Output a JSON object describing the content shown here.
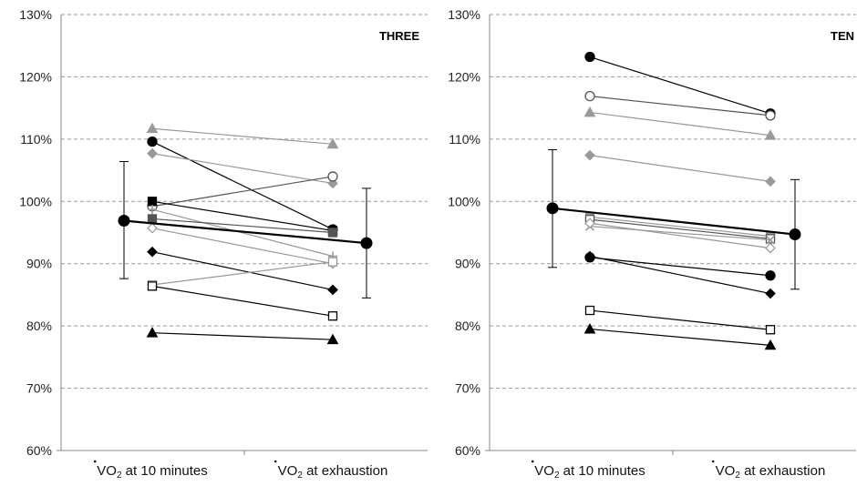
{
  "chart_data": [
    {
      "type": "line",
      "panel_label": "THREE",
      "categories": [
        "VO2 at 10 minutes",
        "VO2 at exhaustion"
      ],
      "category_labels": [
        {
          "main": "VO",
          "sub": "2",
          "rest": " at 10 minutes"
        },
        {
          "main": "VO",
          "sub": "2",
          "rest": " at exhaustion"
        }
      ],
      "y_ticks": [
        "60%",
        "70%",
        "80%",
        "90%",
        "100%",
        "110%",
        "120%",
        "130%"
      ],
      "ylim": [
        60,
        130
      ],
      "grid": "horizontal dashed",
      "series": [
        {
          "marker": "triangle",
          "color": "#999999",
          "values": [
            111.7,
            109.2
          ]
        },
        {
          "marker": "circle",
          "color": "#000000",
          "values": [
            109.6,
            95.5
          ]
        },
        {
          "marker": "diamond",
          "color": "#999999",
          "values": [
            107.7,
            102.9
          ]
        },
        {
          "marker": "circle-open",
          "color": "#555555",
          "values": [
            99.2,
            104.0
          ]
        },
        {
          "marker": "square",
          "color": "#000000",
          "values": [
            100.0,
            95.3
          ]
        },
        {
          "marker": "plus",
          "color": "#999999",
          "values": [
            98.7,
            91.2
          ]
        },
        {
          "marker": "square",
          "color": "#555555",
          "values": [
            97.2,
            95.0
          ]
        },
        {
          "marker": "diamond-open",
          "color": "#999999",
          "values": [
            95.7,
            90.0
          ]
        },
        {
          "marker": "diamond",
          "color": "#000000",
          "values": [
            91.9,
            85.8
          ]
        },
        {
          "marker": "square-open",
          "color": "#999999",
          "values": [
            86.6,
            90.3
          ]
        },
        {
          "marker": "square-open",
          "color": "#000000",
          "values": [
            86.4,
            81.6
          ]
        },
        {
          "marker": "triangle",
          "color": "#000000",
          "values": [
            78.9,
            77.8
          ]
        }
      ],
      "mean": {
        "values": [
          96.9,
          93.3
        ],
        "error_low": [
          87.6,
          84.5
        ],
        "error_high": [
          106.4,
          102.1
        ]
      }
    },
    {
      "type": "line",
      "panel_label": "TEN",
      "categories": [
        "VO2 at 10 minutes",
        "VO2 at exhaustion"
      ],
      "category_labels": [
        {
          "main": "VO",
          "sub": "2",
          "rest": " at 10 minutes"
        },
        {
          "main": "VO",
          "sub": "2",
          "rest": " at exhaustion"
        }
      ],
      "y_ticks": [
        "60%",
        "70%",
        "80%",
        "90%",
        "100%",
        "110%",
        "120%",
        "130%"
      ],
      "ylim": [
        60,
        130
      ],
      "grid": "horizontal dashed",
      "series": [
        {
          "marker": "circle",
          "color": "#000000",
          "values": [
            123.2,
            114.1
          ]
        },
        {
          "marker": "circle-open",
          "color": "#555555",
          "values": [
            116.9,
            113.8
          ]
        },
        {
          "marker": "triangle",
          "color": "#999999",
          "values": [
            114.3,
            110.6
          ]
        },
        {
          "marker": "diamond",
          "color": "#999999",
          "values": [
            107.4,
            103.2
          ]
        },
        {
          "marker": "square",
          "color": "#999999",
          "values": [
            97.5,
            94.4
          ]
        },
        {
          "marker": "square-open",
          "color": "#555555",
          "values": [
            97.1,
            94.0
          ]
        },
        {
          "marker": "cross",
          "color": "#999999",
          "values": [
            96.0,
            93.8
          ]
        },
        {
          "marker": "diamond-open",
          "color": "#999999",
          "values": [
            96.5,
            92.5
          ]
        },
        {
          "marker": "circle",
          "color": "#000000",
          "values": [
            91.0,
            88.1
          ]
        },
        {
          "marker": "diamond",
          "color": "#000000",
          "values": [
            91.2,
            85.2
          ]
        },
        {
          "marker": "square-open",
          "color": "#000000",
          "values": [
            82.5,
            79.4
          ]
        },
        {
          "marker": "triangle",
          "color": "#000000",
          "values": [
            79.5,
            76.9
          ]
        }
      ],
      "mean": {
        "values": [
          98.9,
          94.7
        ],
        "error_low": [
          89.4,
          85.9
        ],
        "error_high": [
          108.3,
          103.5
        ]
      }
    }
  ]
}
